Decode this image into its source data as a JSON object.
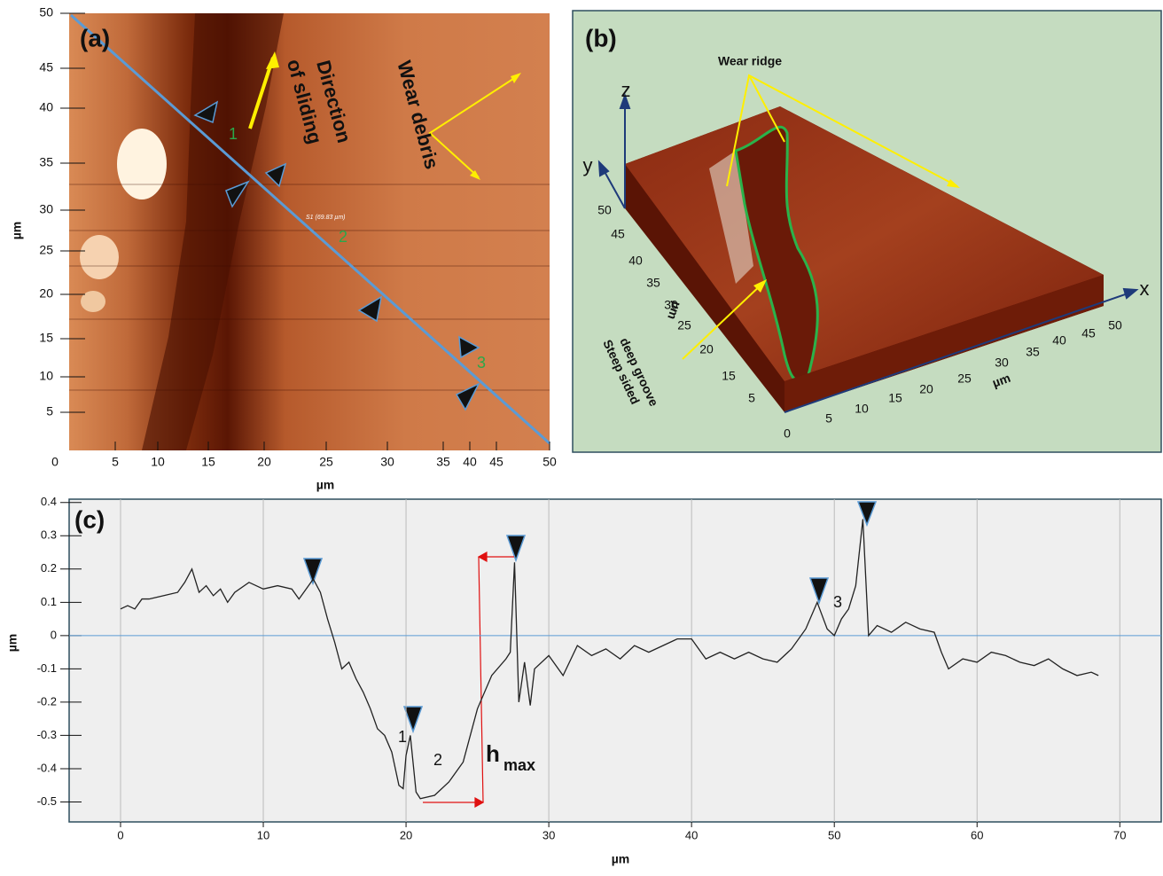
{
  "panel_a": {
    "label": "(a)",
    "xlabel": "µm",
    "ylabel": "µm",
    "xticks": [
      0,
      5,
      10,
      15,
      20,
      25,
      30,
      35,
      40,
      45,
      50
    ],
    "yticks": [
      5,
      10,
      15,
      20,
      25,
      30,
      35,
      40,
      45,
      50
    ],
    "direction": [
      "Direction",
      "of sliding"
    ],
    "debris": "Wear debris",
    "marks": [
      "1",
      "2",
      "3"
    ],
    "line_name": "S1 (69.83 µm)"
  },
  "panel_b": {
    "label": "(b)",
    "ridge": "Wear ridge",
    "groove": [
      "Steep sided",
      "deep groove"
    ],
    "z": "z",
    "y": "y",
    "x": "x",
    "ylabel": "µm",
    "xlabel": "µm",
    "yticks": [
      50,
      45,
      40,
      35,
      30,
      25,
      20,
      15,
      5,
      0
    ],
    "xticks": [
      5,
      10,
      15,
      20,
      25,
      30,
      35,
      40,
      45,
      50
    ]
  },
  "chart_data": {
    "type": "line",
    "label": "(c)",
    "xlabel": "µm",
    "ylabel": "µm",
    "xlim": [
      -3.6,
      72.9
    ],
    "ylim": [
      -0.56,
      0.41
    ],
    "xticks": [
      0,
      10,
      20,
      30,
      40,
      50,
      60,
      70
    ],
    "yticks": [
      -0.5,
      -0.4,
      -0.3,
      -0.2,
      -0.1,
      0,
      0.1,
      0.2,
      0.3,
      0.4
    ],
    "grid": true,
    "annotations": [
      "1",
      "2",
      "3"
    ],
    "hmax": [
      "h",
      "max"
    ],
    "series": [
      {
        "color": "#222222",
        "x": [
          0,
          0.5,
          1,
          1.5,
          2,
          3,
          4,
          4.5,
          5,
          5.5,
          6,
          6.5,
          7,
          7.5,
          8,
          9,
          10,
          11,
          12,
          12.5,
          13,
          13.5,
          14,
          14.5,
          15,
          15.5,
          16,
          16.5,
          17,
          17.5,
          18,
          18.5,
          19,
          19.5,
          19.8,
          20,
          20.3,
          20.7,
          21,
          22,
          23,
          24,
          25,
          26,
          27,
          27.3,
          27.6,
          27.9,
          28.3,
          28.7,
          29,
          30,
          31,
          32,
          33,
          34,
          35,
          36,
          37,
          38,
          39,
          40,
          41,
          42,
          43,
          44,
          45,
          46,
          47,
          48,
          48.8,
          49.5,
          50,
          50.5,
          51,
          51.5,
          52,
          52.4,
          53,
          54,
          55,
          56,
          57,
          57.5,
          58,
          59,
          60,
          61,
          62,
          63,
          64,
          65,
          66,
          67,
          68,
          68.5
        ],
        "values": [
          0.08,
          0.09,
          0.08,
          0.11,
          0.11,
          0.12,
          0.13,
          0.16,
          0.2,
          0.13,
          0.15,
          0.12,
          0.14,
          0.1,
          0.13,
          0.16,
          0.14,
          0.15,
          0.14,
          0.11,
          0.14,
          0.17,
          0.13,
          0.05,
          -0.02,
          -0.1,
          -0.08,
          -0.13,
          -0.17,
          -0.22,
          -0.28,
          -0.3,
          -0.35,
          -0.45,
          -0.46,
          -0.36,
          -0.3,
          -0.47,
          -0.49,
          -0.48,
          -0.44,
          -0.38,
          -0.22,
          -0.12,
          -0.07,
          -0.05,
          0.22,
          -0.2,
          -0.08,
          -0.21,
          -0.1,
          -0.06,
          -0.12,
          -0.03,
          -0.06,
          -0.04,
          -0.07,
          -0.03,
          -0.05,
          -0.03,
          -0.01,
          -0.01,
          -0.07,
          -0.05,
          -0.07,
          -0.05,
          -0.07,
          -0.08,
          -0.04,
          0.02,
          0.1,
          0.02,
          0,
          0.05,
          0.08,
          0.15,
          0.35,
          0,
          0.03,
          0.01,
          0.04,
          0.02,
          0.01,
          -0.05,
          -0.1,
          -0.07,
          -0.08,
          -0.05,
          -0.06,
          -0.08,
          -0.09,
          -0.07,
          -0.1,
          -0.12,
          -0.11,
          -0.12
        ]
      }
    ]
  }
}
